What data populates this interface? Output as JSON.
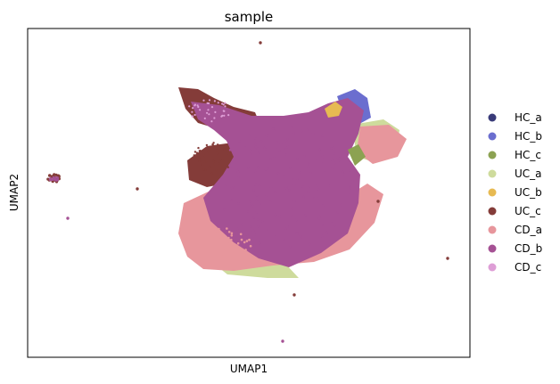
{
  "chart_data": {
    "type": "scatter",
    "title": "sample",
    "xlabel": "UMAP1",
    "ylabel": "UMAP2",
    "xticks": false,
    "yticks": false,
    "grid": false,
    "legend_position": "right",
    "legend": [
      {
        "name": "HC_a",
        "color": "#393b79"
      },
      {
        "name": "HC_b",
        "color": "#6b6ecf"
      },
      {
        "name": "HC_c",
        "color": "#8ca252"
      },
      {
        "name": "UC_a",
        "color": "#cedb9c"
      },
      {
        "name": "UC_b",
        "color": "#e7ba52"
      },
      {
        "name": "UC_c",
        "color": "#843c39"
      },
      {
        "name": "CD_a",
        "color": "#e7969c"
      },
      {
        "name": "CD_b",
        "color": "#a55194"
      },
      {
        "name": "CD_c",
        "color": "#de9ed6"
      }
    ]
  }
}
